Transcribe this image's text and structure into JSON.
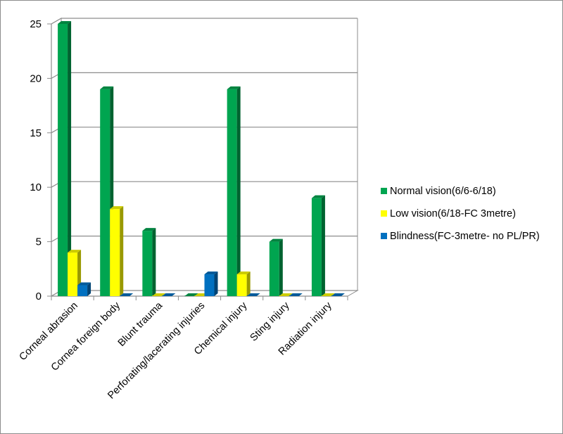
{
  "chart_data": {
    "type": "bar",
    "title": "",
    "xlabel": "",
    "ylabel": "",
    "categories": [
      "Corneal abrasion",
      "Cornea foreign body",
      "Blunt trauma",
      "Perforating/lacerating injuries",
      "Chemical injury",
      "Sting injury",
      "Radiation injury"
    ],
    "series": [
      {
        "name": "Normal vision(6/6-6/18)",
        "values": [
          25,
          19,
          6,
          0,
          19,
          5,
          9
        ],
        "color": "#00A550"
      },
      {
        "name": "Low vision(6/18-FC 3metre)",
        "values": [
          4,
          8,
          0,
          0,
          2,
          0,
          0
        ],
        "color": "#FFFF00"
      },
      {
        "name": "Blindness(FC-3metre- no PL/PR)",
        "values": [
          1,
          0,
          0,
          2,
          0,
          0,
          0
        ],
        "color": "#0070C0"
      }
    ],
    "ylim": [
      0,
      25
    ],
    "yticks": [
      0,
      5,
      10,
      15,
      20,
      25
    ],
    "grid": true,
    "legend_position": "right",
    "style": "3d-column"
  }
}
